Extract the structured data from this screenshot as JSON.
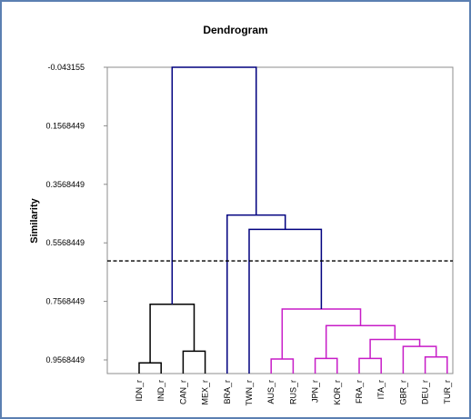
{
  "chart_data": {
    "type": "dendrogram",
    "title": "Dendrogram",
    "ylabel": "Similarity",
    "y_ticks": [
      -0.043155,
      0.1568449,
      0.3568449,
      0.5568449,
      0.7568449,
      0.9568449
    ],
    "y_tick_labels": [
      "-0.043155",
      "0.1568449",
      "0.3568449",
      "0.5568449",
      "0.7568449",
      "0.9568449"
    ],
    "ylim": [
      -0.043155,
      0.9568449
    ],
    "leaves": [
      "IDN_r",
      "IND_r",
      "CAN_r",
      "MEX_r",
      "BRA_r",
      "TWN_r",
      "AUS_r",
      "RUS_r",
      "JPN_r",
      "KOR_r",
      "FRA_r",
      "ITA_r",
      "GBR_r",
      "DEU_r",
      "TUR_r"
    ],
    "cut_line": 0.6186,
    "clusters": [
      {
        "members": [
          "IDN_r",
          "IND_r",
          "CAN_r",
          "MEX_r"
        ],
        "color": "#000000"
      },
      {
        "members": [
          "BRA_r",
          "TWN_r"
        ],
        "color": "#00007f"
      },
      {
        "members": [
          "AUS_r",
          "RUS_r",
          "JPN_r",
          "KOR_r",
          "FRA_r",
          "ITA_r",
          "GBR_r",
          "DEU_r",
          "TUR_r"
        ],
        "color": "#c71cc7"
      }
    ],
    "merges": [
      {
        "left": 0,
        "right": 1,
        "height": 0.9668,
        "color": "#000000"
      },
      {
        "left": 2,
        "right": 3,
        "height": 0.9268,
        "color": "#000000"
      },
      {
        "left": 15,
        "right": 16,
        "height": 0.7668,
        "color": "#000000"
      },
      {
        "left": 6,
        "right": 7,
        "height": 0.9538,
        "color": "#c71cc7"
      },
      {
        "left": 8,
        "right": 9,
        "height": 0.9518,
        "color": "#c71cc7"
      },
      {
        "left": 10,
        "right": 11,
        "height": 0.9518,
        "color": "#c71cc7"
      },
      {
        "left": 13,
        "right": 14,
        "height": 0.9468,
        "color": "#c71cc7"
      },
      {
        "left": 12,
        "right": 21,
        "height": 0.9108,
        "color": "#c71cc7"
      },
      {
        "left": 20,
        "right": 22,
        "height": 0.8868,
        "color": "#c71cc7"
      },
      {
        "left": 19,
        "right": 23,
        "height": 0.8398,
        "color": "#c71cc7"
      },
      {
        "left": 18,
        "right": 24,
        "height": 0.7828,
        "color": "#c71cc7"
      },
      {
        "left": 5,
        "right": 25,
        "height": 0.5108,
        "color": "#00007f"
      },
      {
        "left": 4,
        "right": 26,
        "height": 0.4618,
        "color": "#00007f"
      },
      {
        "left": 17,
        "right": 27,
        "height": -0.043155,
        "color": "#00007f"
      }
    ]
  }
}
